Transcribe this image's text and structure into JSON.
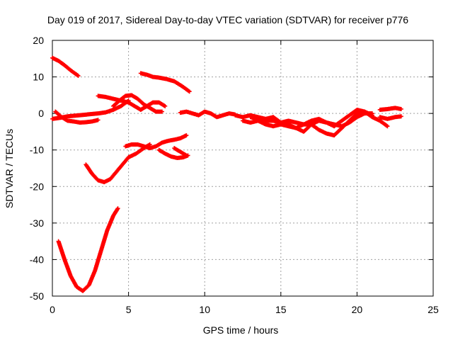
{
  "chart_data": {
    "type": "scatter",
    "title": "Day 019 of 2017, Sidereal Day-to-day VTEC variation (SDTVAR) for receiver p776",
    "xlabel": "GPS time / hours",
    "ylabel": "SDTVAR / TECUs",
    "xlim": [
      0,
      25
    ],
    "ylim": [
      -50,
      20
    ],
    "xticks": [
      "0",
      "5",
      "10",
      "15",
      "20",
      "25"
    ],
    "yticks": [
      "20",
      "10",
      "0",
      "-10",
      "-20",
      "-30",
      "-40",
      "-50"
    ],
    "grid": true,
    "legend": "none",
    "marker": "+",
    "color": "#ff0000",
    "series": [
      {
        "x": [
          0.0,
          0.4,
          0.8,
          1.2,
          1.7
        ],
        "y": [
          15.2,
          14.4,
          13.2,
          11.8,
          10.3
        ]
      },
      {
        "x": [
          0.4,
          0.8,
          1.2,
          1.6,
          2.0,
          2.4,
          2.8,
          3.2,
          3.6,
          4.0,
          4.3
        ],
        "y": [
          -35,
          -40,
          -44.5,
          -47.5,
          -48.6,
          -47,
          -43,
          -37.5,
          -32,
          -28,
          -26
        ]
      },
      {
        "x": [
          2.2,
          2.6,
          3.0,
          3.4,
          3.8,
          4.2,
          4.6,
          5.0,
          5.5,
          6.0,
          6.4
        ],
        "y": [
          -14,
          -16.5,
          -18.3,
          -18.8,
          -18,
          -16,
          -14,
          -12,
          -11,
          -9.5,
          -8.5
        ]
      },
      {
        "x": [
          4.8,
          5.2,
          5.6,
          6.0,
          6.4,
          6.8,
          7.2,
          7.6,
          8.0,
          8.4,
          8.8
        ],
        "y": [
          -9,
          -8.5,
          -8.5,
          -9,
          -9.5,
          -9,
          -8,
          -7.5,
          -7.2,
          -6.8,
          -6
        ]
      },
      {
        "x": [
          7.0,
          7.4,
          7.8,
          8.2,
          8.6,
          8.9
        ],
        "y": [
          -10,
          -11,
          -11.8,
          -12.2,
          -12,
          -11.5
        ]
      },
      {
        "x": [
          8.0,
          8.4,
          8.8
        ],
        "y": [
          -9.5,
          -10.5,
          -11.5
        ]
      },
      {
        "x": [
          0.0,
          0.5,
          1.0,
          1.5,
          2.0,
          2.5,
          3.0,
          3.5,
          4.0,
          4.5,
          5.0
        ],
        "y": [
          -1.5,
          -1.2,
          -0.8,
          -0.6,
          -0.4,
          -0.2,
          0.0,
          0.3,
          1.0,
          2.0,
          3.5
        ]
      },
      {
        "x": [
          0.2,
          0.6,
          1.0,
          1.4,
          1.8,
          2.2,
          2.6,
          3.0
        ],
        "y": [
          0.5,
          -1.0,
          -2.0,
          -2.2,
          -2.5,
          -2.4,
          -2.2,
          -1.8
        ]
      },
      {
        "x": [
          3.0,
          3.5,
          4.0,
          4.5,
          5.0,
          5.4,
          5.8,
          6.2,
          6.6,
          7.0,
          7.4
        ],
        "y": [
          4.8,
          4.5,
          4.0,
          3.5,
          3.0,
          2.0,
          1.0,
          2.0,
          3.0,
          3.0,
          2.0
        ]
      },
      {
        "x": [
          4.0,
          4.4,
          4.8,
          5.2,
          5.6,
          6.0,
          6.4,
          6.8,
          7.2
        ],
        "y": [
          2.0,
          3.5,
          4.8,
          5.0,
          4.0,
          2.5,
          1.5,
          0.5,
          0.5
        ]
      },
      {
        "x": [
          5.8,
          6.2,
          6.6,
          7.0,
          7.5,
          8.0,
          8.5,
          9.0
        ],
        "y": [
          11.0,
          10.6,
          10.0,
          9.8,
          9.4,
          8.8,
          7.5,
          6.0
        ]
      },
      {
        "x": [
          8.4,
          8.8,
          9.2,
          9.6,
          10.0,
          10.4,
          10.8,
          11.2,
          11.6,
          12.0
        ],
        "y": [
          0.2,
          0.5,
          0.0,
          -0.5,
          0.5,
          0.0,
          -1.0,
          -0.5,
          0.0,
          -0.3
        ]
      },
      {
        "x": [
          12.0,
          12.5,
          13.0,
          13.5,
          14.0,
          14.5,
          15.0,
          15.5,
          16.0,
          16.5,
          17.0,
          17.5,
          18.0,
          18.5,
          19.0,
          19.5,
          20.0,
          20.5,
          21.0
        ],
        "y": [
          -0.5,
          -1.0,
          -0.5,
          -1.0,
          -1.5,
          -1.0,
          -2.5,
          -2.0,
          -2.5,
          -3.0,
          -2.0,
          -1.5,
          -2.5,
          -3.5,
          -2.0,
          -0.5,
          1.0,
          0.5,
          -0.5
        ]
      },
      {
        "x": [
          12.5,
          13.0,
          13.5,
          14.0,
          14.5,
          15.0,
          15.5,
          16.0,
          16.5,
          17.0,
          17.5,
          18.0,
          18.5,
          19.0,
          19.5,
          20.0,
          20.5,
          21.0,
          21.5,
          22.0
        ],
        "y": [
          -2.0,
          -2.5,
          -2.0,
          -3.0,
          -3.5,
          -3.0,
          -3.5,
          -4.0,
          -3.0,
          -3.0,
          -4.5,
          -5.5,
          -6.0,
          -4.0,
          -2.0,
          0.0,
          0.5,
          -1.0,
          -2.0,
          -3.5
        ]
      },
      {
        "x": [
          13.0,
          13.5,
          14.0,
          14.5,
          15.0,
          15.5,
          16.0,
          16.5,
          17.0,
          17.5,
          18.0,
          18.5,
          19.0,
          19.5,
          20.0,
          20.5,
          21.0
        ],
        "y": [
          -1.0,
          -1.5,
          -2.0,
          -2.0,
          -2.5,
          -3.0,
          -4.0,
          -5.0,
          -3.0,
          -2.0,
          -2.5,
          -3.0,
          -3.5,
          -2.5,
          -1.0,
          0.0,
          0.0
        ]
      },
      {
        "x": [
          21.5,
          22.0,
          22.5,
          22.9
        ],
        "y": [
          1.0,
          1.2,
          1.5,
          1.2
        ]
      },
      {
        "x": [
          21.5,
          22.0,
          22.5,
          22.9
        ],
        "y": [
          -1.0,
          -1.5,
          -1.0,
          -0.8
        ]
      }
    ]
  }
}
